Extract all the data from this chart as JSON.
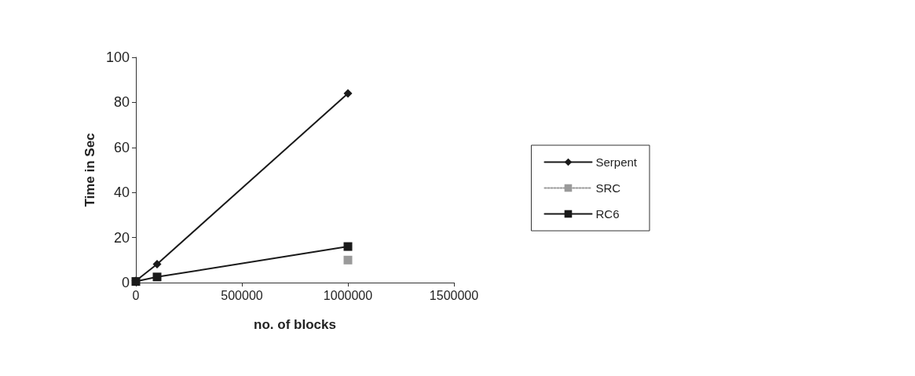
{
  "chart_data": {
    "type": "line",
    "xlabel": "no. of blocks",
    "ylabel": "Time in Sec",
    "x": [
      0,
      100000,
      1000000
    ],
    "series": [
      {
        "name": "Serpent",
        "color": "#1a1a1a",
        "marker": "diamond",
        "line_style": "solid",
        "values": [
          0.8,
          8.2,
          84
        ]
      },
      {
        "name": "SRC",
        "color": "#9a9a9a",
        "marker": "square",
        "line_style": "dotted",
        "values": [
          null,
          null,
          10
        ]
      },
      {
        "name": "RC6",
        "color": "#1a1a1a",
        "marker": "square",
        "line_style": "solid",
        "values": [
          0.5,
          2.5,
          16
        ]
      }
    ],
    "xlim": [
      0,
      1500000
    ],
    "xticks": [
      0,
      500000,
      1000000,
      1500000
    ],
    "ylim": [
      0,
      100
    ],
    "yticks": [
      0,
      20,
      40,
      60,
      80,
      100
    ],
    "grid": false,
    "legend": "right"
  }
}
